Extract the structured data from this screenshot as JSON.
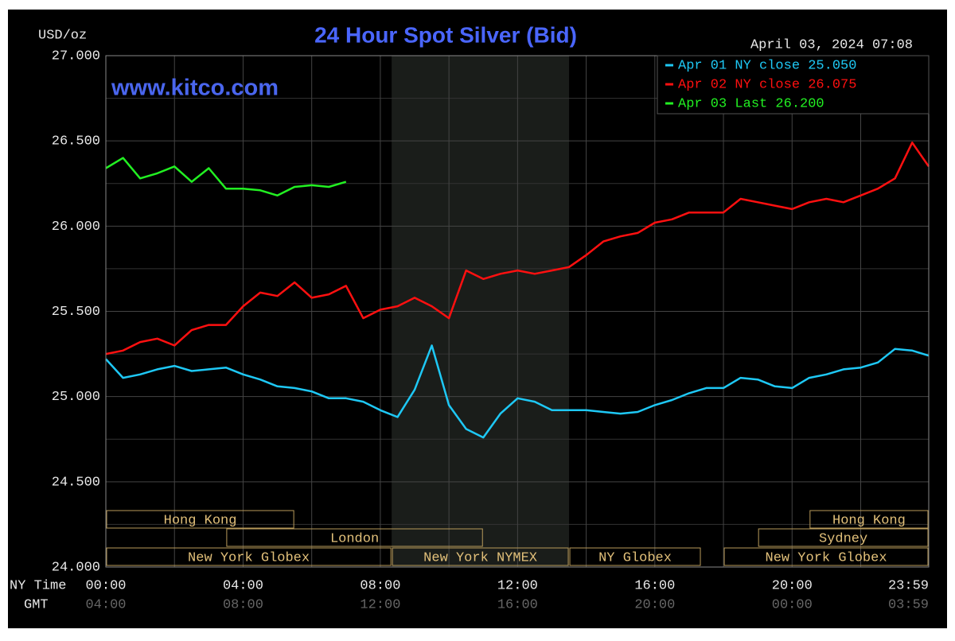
{
  "chart_data": {
    "type": "line",
    "title": "24 Hour Spot Silver (Bid)",
    "y_label": "USD/oz",
    "timestamp": "April 03, 2024 07:08",
    "watermark": "www.kitco.com",
    "x_label": "NY Time",
    "x2_label": "GMT",
    "xlim": [
      0,
      23.983
    ],
    "ylim": [
      24,
      27
    ],
    "xticks": [
      {
        "value": 0,
        "label": "00:00"
      },
      {
        "value": 4,
        "label": "04:00"
      },
      {
        "value": 8,
        "label": "08:00"
      },
      {
        "value": 12,
        "label": "12:00"
      },
      {
        "value": 16,
        "label": "16:00"
      },
      {
        "value": 20,
        "label": "20:00"
      },
      {
        "value": 23.983,
        "label": "23:59"
      }
    ],
    "x2ticks": [
      {
        "value": 0,
        "label": "04:00"
      },
      {
        "value": 4,
        "label": "08:00"
      },
      {
        "value": 8,
        "label": "12:00"
      },
      {
        "value": 12,
        "label": "16:00"
      },
      {
        "value": 16,
        "label": "20:00"
      },
      {
        "value": 20,
        "label": "00:00"
      },
      {
        "value": 23.983,
        "label": "03:59"
      }
    ],
    "minor_xticks": [
      2,
      6,
      10,
      14,
      18,
      22
    ],
    "yticks": [
      {
        "value": 24,
        "label": "24.000"
      },
      {
        "value": 24.5,
        "label": "24.500"
      },
      {
        "value": 25,
        "label": "25.000"
      },
      {
        "value": 25.5,
        "label": "25.500"
      },
      {
        "value": 26,
        "label": "26.000"
      },
      {
        "value": 26.5,
        "label": "26.500"
      },
      {
        "value": 27,
        "label": "27.000"
      }
    ],
    "minor_yticks": [
      24.25,
      24.75,
      25.25,
      25.75,
      26.25,
      26.75
    ],
    "grid": true,
    "shaded": [
      8.33,
      13.5
    ],
    "x": [
      0,
      0.5,
      1,
      1.5,
      2,
      2.5,
      3,
      3.5,
      4,
      4.5,
      5,
      5.5,
      6,
      6.5,
      7,
      7.5,
      8,
      8.5,
      9,
      9.5,
      10,
      10.5,
      11,
      11.5,
      12,
      12.5,
      13,
      13.5,
      14,
      14.5,
      15,
      15.5,
      16,
      16.5,
      17,
      17.5,
      18,
      18.5,
      19,
      19.5,
      20,
      20.5,
      21,
      21.5,
      22,
      22.5,
      23,
      23.5,
      23.983
    ],
    "series": [
      {
        "name": "Apr 01 NY close 25.050",
        "color": "#1ec8f5",
        "values": [
          25.22,
          25.11,
          25.13,
          25.16,
          25.18,
          25.15,
          25.16,
          25.17,
          25.13,
          25.1,
          25.06,
          25.05,
          25.03,
          24.99,
          24.99,
          24.97,
          24.92,
          24.88,
          25.04,
          25.3,
          24.95,
          24.81,
          24.76,
          24.9,
          24.99,
          24.97,
          24.92,
          24.92,
          24.92,
          24.91,
          24.9,
          24.91,
          24.95,
          24.98,
          25.02,
          25.05,
          25.05,
          25.11,
          25.1,
          25.06,
          25.05,
          25.11,
          25.13,
          25.16,
          25.17,
          25.2,
          25.28,
          25.27,
          25.24
        ]
      },
      {
        "name": "Apr 02 NY close 26.075",
        "color": "#ff1010",
        "values": [
          25.25,
          25.27,
          25.32,
          25.34,
          25.3,
          25.39,
          25.42,
          25.42,
          25.53,
          25.61,
          25.59,
          25.67,
          25.58,
          25.6,
          25.65,
          25.46,
          25.51,
          25.53,
          25.58,
          25.53,
          25.46,
          25.74,
          25.69,
          25.72,
          25.74,
          25.72,
          25.74,
          25.76,
          25.83,
          25.91,
          25.94,
          25.96,
          26.02,
          26.04,
          26.08,
          26.08,
          26.08,
          26.16,
          26.14,
          26.12,
          26.1,
          26.14,
          26.16,
          26.14,
          26.18,
          26.22,
          26.28,
          26.49,
          26.35
        ]
      },
      {
        "name": "Apr 03 Last 26.200",
        "color": "#22f022",
        "values": [
          26.34,
          26.4,
          26.28,
          26.31,
          26.35,
          26.26,
          26.34,
          26.22,
          26.22,
          26.21,
          26.18,
          26.23,
          26.24,
          26.23,
          26.26,
          null,
          null,
          null,
          null,
          null,
          null,
          null,
          null,
          null,
          null,
          null,
          null,
          null,
          null,
          null,
          null,
          null,
          null,
          null,
          null,
          null,
          null,
          null,
          null,
          null,
          null,
          null,
          null,
          null,
          null,
          null,
          null,
          null,
          null
        ]
      }
    ],
    "sessions": [
      {
        "label": "Hong Kong",
        "start": 0,
        "end": 5.5,
        "row": 1
      },
      {
        "label": "Hong Kong",
        "start": 20.5,
        "end": 23.983,
        "row": 1
      },
      {
        "label": "London",
        "start": 3.5,
        "end": 11,
        "row": 2
      },
      {
        "label": "Sydney",
        "start": 19,
        "end": 23.983,
        "row": 2
      },
      {
        "label": "New York Globex",
        "start": 0,
        "end": 8.33,
        "row": 3
      },
      {
        "label": "New York NYMEX",
        "start": 8.33,
        "end": 13.5,
        "row": 3
      },
      {
        "label": "NY Globex",
        "start": 13.5,
        "end": 17.35,
        "row": 3
      },
      {
        "label": "New York Globex",
        "start": 18,
        "end": 23.983,
        "row": 3
      }
    ]
  }
}
